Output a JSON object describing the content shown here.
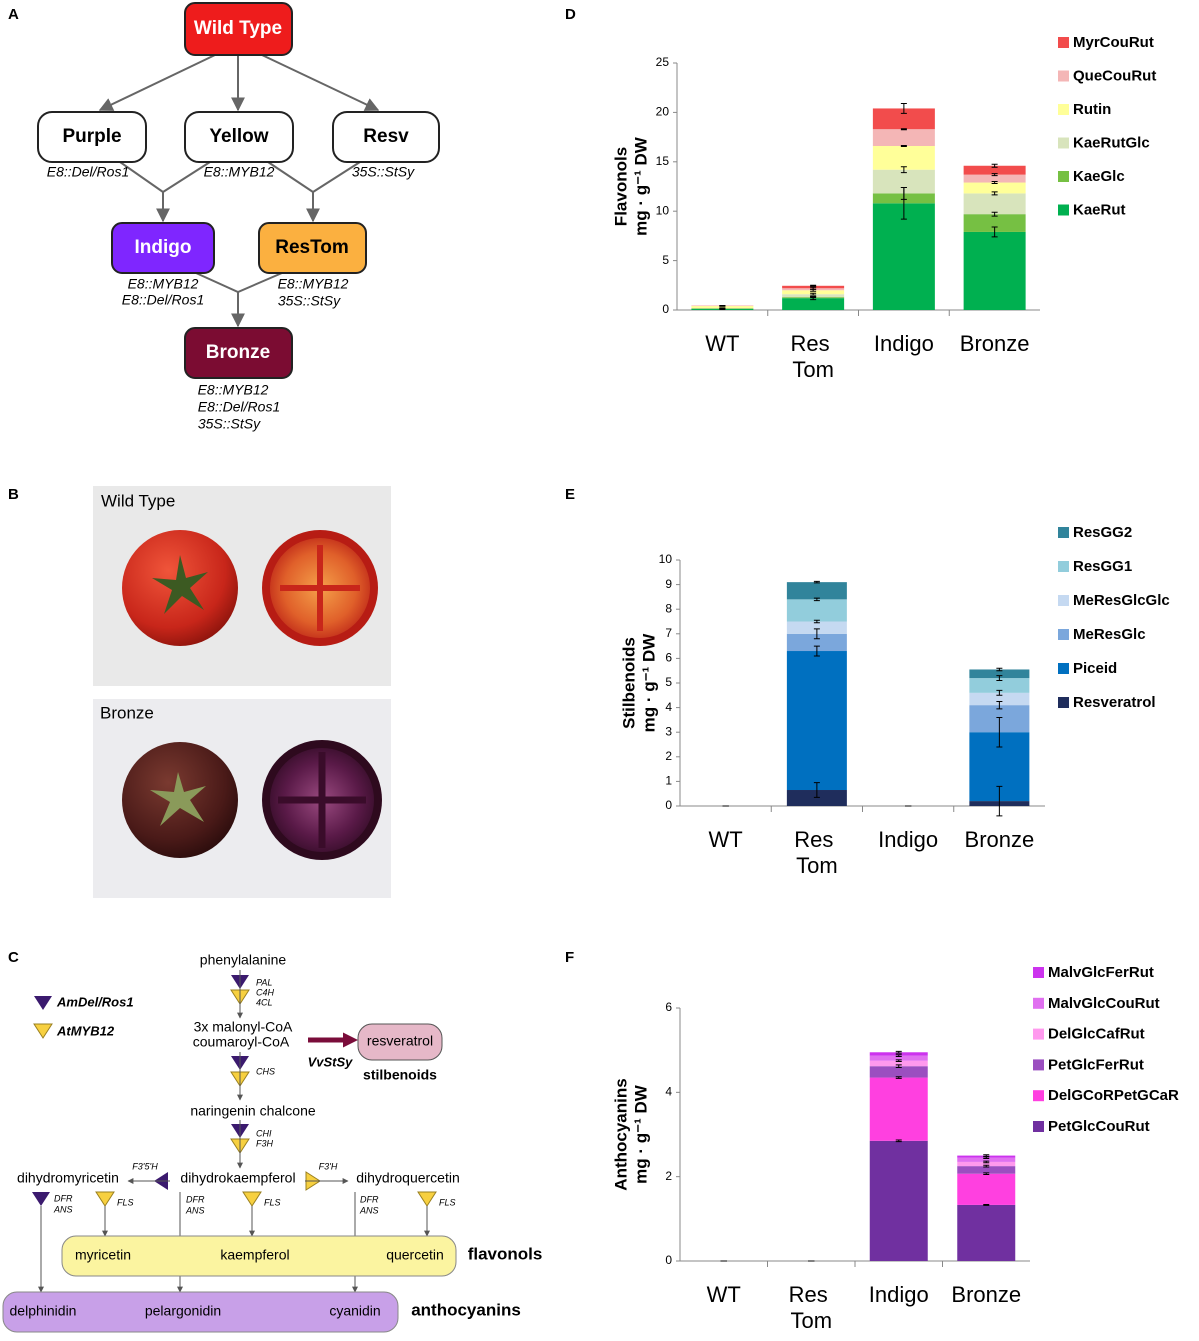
{
  "panels": [
    "A",
    "B",
    "C",
    "D",
    "E",
    "F"
  ],
  "lineage": {
    "nodes": [
      "Wild Type",
      "Purple",
      "Yellow",
      "Resv",
      "Indigo",
      "ResTom",
      "Bronze"
    ],
    "genotypes": {
      "purple": [
        "E8::Del/Ros1"
      ],
      "yellow": [
        "E8::MYB12"
      ],
      "resv": [
        "35S::StSy"
      ],
      "indigo": [
        "E8::MYB12",
        "E8::Del/Ros1"
      ],
      "restom": [
        "E8::MYB12",
        "35S::StSy"
      ],
      "bronze": [
        "E8::MYB12",
        "E8::Del/Ros1",
        "35S::StSy"
      ]
    }
  },
  "photos": [
    "Wild Type",
    "Bronze"
  ],
  "pathway": {
    "labels": [
      "AmDel/Ros1",
      "AtMYB12",
      "phenylalanine",
      "PAL",
      "C4H",
      "4CL",
      "3x malonyl-CoA",
      "coumaroyl-CoA",
      "VvStSy",
      "resveratrol",
      "stilbenoids",
      "CHS",
      "naringenin chalcone",
      "CHI",
      "F3H",
      "dihydromyricetin",
      "F3'5'H",
      "dihydrokaempferol",
      "F3'H",
      "dihydroquercetin",
      "DFR",
      "ANS",
      "FLS",
      "DFR",
      "ANS",
      "FLS",
      "DFR",
      "ANS",
      "FLS",
      "myricetin",
      "kaempferol",
      "quercetin",
      "flavonols",
      "delphinidin",
      "pelargonidin",
      "cyanidin",
      "anthocyanins"
    ]
  },
  "chart_data": [
    {
      "type": "bar",
      "stacked": true,
      "ylabel": [
        "Flavonols",
        "mg · g⁻¹ DW"
      ],
      "categories": [
        "WT",
        "Res Tom",
        "Indigo",
        "Bronze"
      ],
      "ylim": [
        0,
        25
      ],
      "yticks": [
        0,
        5,
        10,
        15,
        20,
        25
      ],
      "series": [
        {
          "name": "KaeRut",
          "color": "#00b050",
          "values": [
            0.1,
            1.2,
            10.8,
            7.9
          ],
          "errors": [
            0.05,
            0.15,
            1.6,
            0.5
          ]
        },
        {
          "name": "KaeGlc",
          "color": "#76c043",
          "values": [
            0.05,
            0.1,
            1.0,
            1.8
          ],
          "errors": [
            0.02,
            0.05,
            0.6,
            0.2
          ]
        },
        {
          "name": "KaeRutGlc",
          "color": "#d8e4bc",
          "values": [
            0.05,
            0.3,
            2.4,
            2.1
          ],
          "errors": [
            0.02,
            0.1,
            0.3,
            0.15
          ]
        },
        {
          "name": "Rutin",
          "color": "#ffff99",
          "values": [
            0.2,
            0.4,
            2.4,
            1.1
          ],
          "errors": [
            0.02,
            0.1,
            0.05,
            0.1
          ]
        },
        {
          "name": "QueCouRut",
          "color": "#f4b6b6",
          "values": [
            0.02,
            0.2,
            1.7,
            0.8
          ],
          "errors": [
            0.02,
            0.1,
            0.05,
            0.1
          ]
        },
        {
          "name": "MyrCouRut",
          "color": "#f24c4c",
          "values": [
            0.02,
            0.25,
            2.1,
            0.9
          ],
          "errors": [
            0.02,
            0.05,
            0.5,
            0.15
          ]
        }
      ]
    },
    {
      "type": "bar",
      "stacked": true,
      "ylabel": [
        "Stilbenoids",
        "mg · g⁻¹ DW"
      ],
      "categories": [
        "WT",
        "Res Tom",
        "Indigo",
        "Bronze"
      ],
      "ylim": [
        0,
        10
      ],
      "yticks": [
        0,
        1,
        2,
        3,
        4,
        5,
        6,
        7,
        8,
        9,
        10
      ],
      "series": [
        {
          "name": "Resveratrol",
          "color": "#1f2d5c",
          "values": [
            0,
            0.65,
            0,
            0.2
          ],
          "errors": [
            0,
            0.3,
            0,
            0.6
          ]
        },
        {
          "name": "Piceid",
          "color": "#0070c0",
          "values": [
            0,
            5.65,
            0,
            2.8
          ],
          "errors": [
            0,
            0.2,
            0,
            0.6
          ]
        },
        {
          "name": "MeResGlc",
          "color": "#7ba7dc",
          "values": [
            0,
            0.7,
            0,
            1.1
          ],
          "errors": [
            0,
            0.2,
            0,
            0.15
          ]
        },
        {
          "name": "MeResGlcGlc",
          "color": "#c5d9f1",
          "values": [
            0,
            0.5,
            0,
            0.5
          ],
          "errors": [
            0,
            0.05,
            0,
            0.1
          ]
        },
        {
          "name": "ResGG1",
          "color": "#92cddc",
          "values": [
            0,
            0.9,
            0,
            0.6
          ],
          "errors": [
            0,
            0.05,
            0,
            0.1
          ]
        },
        {
          "name": "ResGG2",
          "color": "#31849b",
          "values": [
            0,
            0.7,
            0,
            0.35
          ],
          "errors": [
            0,
            0.03,
            0,
            0.05
          ]
        }
      ]
    },
    {
      "type": "bar",
      "stacked": true,
      "ylabel": [
        "Anthocyanins",
        "mg · g⁻¹ DW"
      ],
      "categories": [
        "WT",
        "Res Tom",
        "Indigo",
        "Bronze"
      ],
      "ylim": [
        0,
        6
      ],
      "yticks": [
        0,
        2,
        4,
        6
      ],
      "series": [
        {
          "name": "PetGlcCouRut",
          "color": "#7030a0",
          "values": [
            0,
            0,
            2.85,
            1.33
          ],
          "errors": [
            0,
            0,
            0.02,
            0.01
          ]
        },
        {
          "name": "DelGCoRPetGCaR",
          "color": "#ff40e0",
          "values": [
            0,
            0,
            1.5,
            0.74
          ],
          "errors": [
            0,
            0,
            0.02,
            0.02
          ]
        },
        {
          "name": "PetGlcFerRut",
          "color": "#9b4fc0",
          "values": [
            0,
            0,
            0.27,
            0.18
          ],
          "errors": [
            0,
            0,
            0.03,
            0.02
          ]
        },
        {
          "name": "DelGlcCafRut",
          "color": "#ff99ee",
          "values": [
            0,
            0,
            0.13,
            0.1
          ],
          "errors": [
            0,
            0,
            0.02,
            0.02
          ]
        },
        {
          "name": "MalvGlcCouRut",
          "color": "#e070f0",
          "values": [
            0,
            0,
            0.12,
            0.1
          ],
          "errors": [
            0,
            0,
            0.02,
            0.02
          ]
        },
        {
          "name": "MalvGlcFerRut",
          "color": "#cc33ee",
          "values": [
            0,
            0,
            0.08,
            0.05
          ],
          "errors": [
            0,
            0,
            0.02,
            0.02
          ]
        }
      ]
    }
  ]
}
